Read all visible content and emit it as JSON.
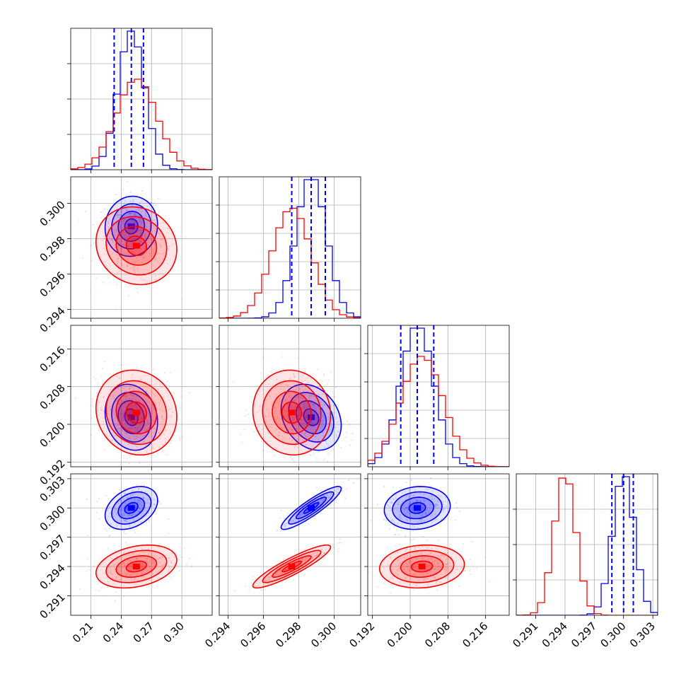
{
  "chart_data": {
    "type": "corner",
    "parameters": [
      {
        "ticks": [
          "0.21",
          "0.24",
          "0.27",
          "0.30"
        ],
        "range": [
          0.19,
          0.33
        ]
      },
      {
        "ticks": [
          "0.294",
          "0.296",
          "0.298",
          "0.300"
        ],
        "range": [
          0.2935,
          0.3015
        ]
      },
      {
        "ticks": [
          "0.192",
          "0.200",
          "0.208",
          "0.216"
        ],
        "range": [
          0.191,
          0.221
        ]
      },
      {
        "ticks": [
          "0.291",
          "0.294",
          "0.297",
          "0.300",
          "0.303"
        ],
        "range": [
          0.289,
          0.3035
        ]
      }
    ],
    "hist_ticks": [
      3,
      4,
      4,
      3
    ],
    "series": [
      {
        "color": "#0000ff",
        "mean": [
          0.25,
          0.2987,
          0.2015,
          0.3
        ],
        "std": [
          0.013,
          0.00085,
          0.0035,
          0.0011
        ],
        "quantiles": [
          [
            0.233,
            0.25,
            0.262
          ],
          [
            0.2976,
            0.2987,
            0.2995
          ],
          [
            0.198,
            0.2015,
            0.205
          ],
          [
            0.2988,
            0.3,
            0.301
          ]
        ],
        "corr": [
          [
            1.0,
            0.05,
            -0.15,
            0.35
          ],
          [
            0.05,
            1.0,
            -0.25,
            0.9
          ],
          [
            -0.15,
            -0.25,
            1.0,
            0.1
          ],
          [
            0.35,
            0.9,
            0.1,
            1.0
          ]
        ]
      },
      {
        "color": "#ff0000",
        "mean": [
          0.255,
          0.2976,
          0.2025,
          0.294
        ],
        "std": [
          0.02,
          0.0011,
          0.0045,
          0.0011
        ],
        "quantiles": [],
        "corr": [
          [
            1.0,
            -0.1,
            -0.1,
            0.3
          ],
          [
            -0.1,
            1.0,
            -0.05,
            0.9
          ],
          [
            -0.1,
            -0.05,
            1.0,
            0.1
          ],
          [
            0.3,
            0.9,
            0.1,
            1.0
          ]
        ]
      }
    ],
    "quantile_line_color": "#0000ff",
    "contour_levels": [
      0.5,
      1.0,
      1.5,
      2.0
    ],
    "grid": true
  }
}
